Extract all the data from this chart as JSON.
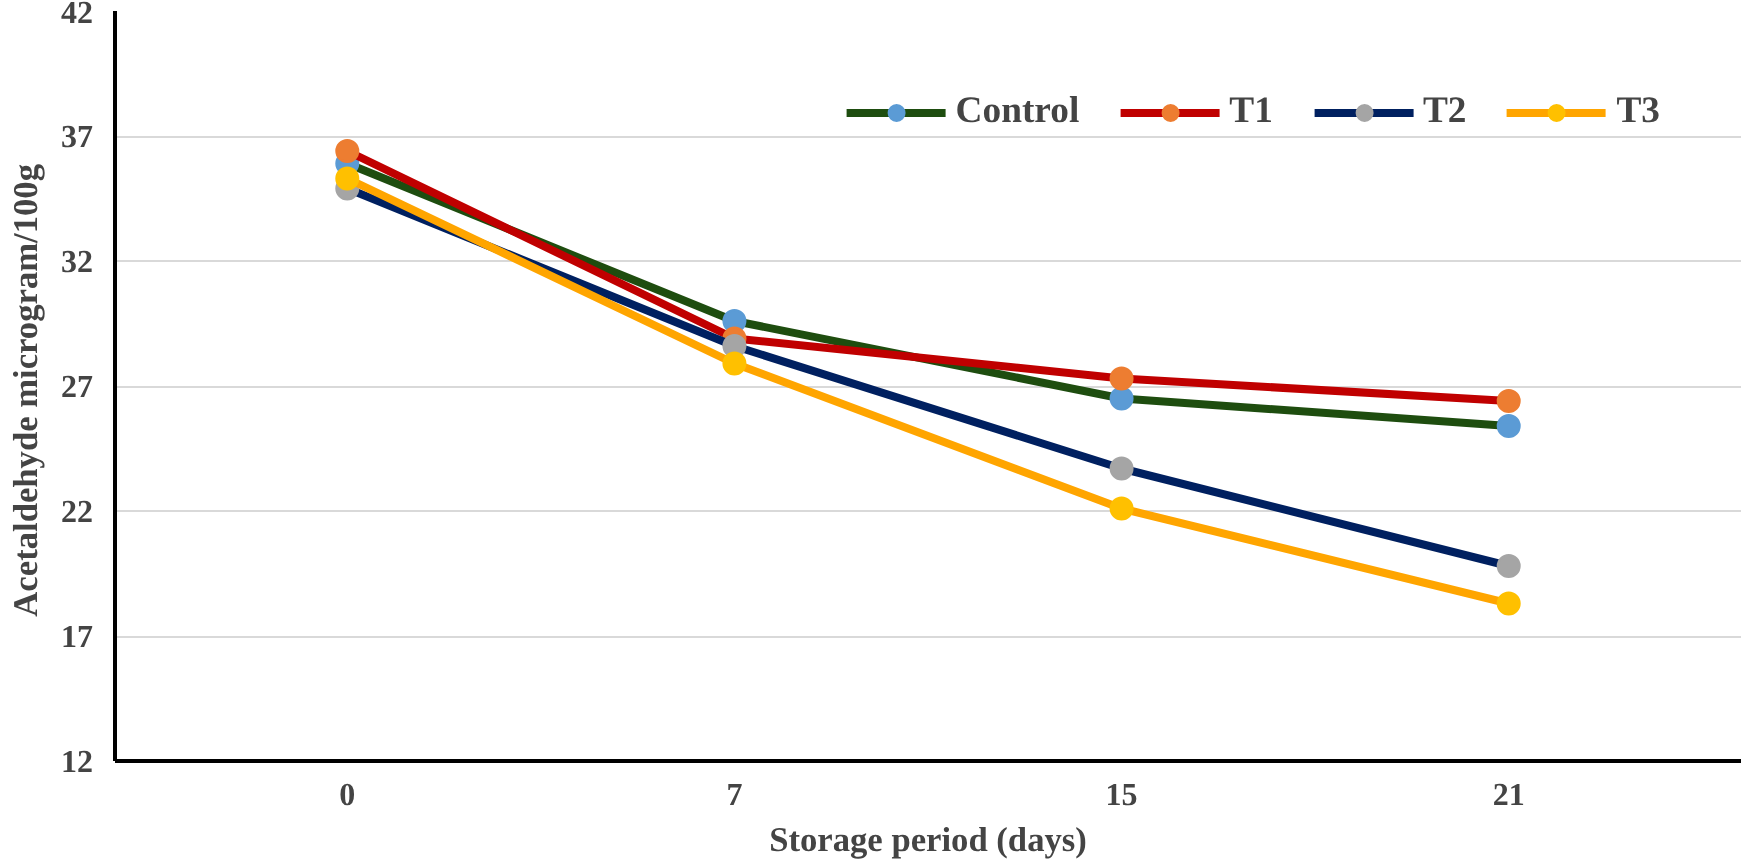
{
  "chart_data": {
    "type": "line",
    "xlabel": "Storage period (days)",
    "ylabel": "Acetaldehyde  microgram/100g",
    "categories": [
      "0",
      "7",
      "15",
      "21"
    ],
    "series": [
      {
        "name": "Control",
        "color": "#1e4d0f",
        "colors": [
          "#5b9bd5",
          "#5b9bd5",
          "#5b9bd5",
          "#5b9bd5"
        ],
        "values": [
          35.9,
          29.6,
          26.5,
          25.4
        ]
      },
      {
        "name": "T1",
        "color": "#c00000",
        "colors": [
          "#ed7d31",
          "#ed7d31",
          "#ed7d31",
          "#ed7d31"
        ],
        "values": [
          36.4,
          28.9,
          27.3,
          26.4
        ]
      },
      {
        "name": "T2",
        "color": "#002060",
        "colors": [
          "#a5a5a5",
          "#a5a5a5",
          "#a5a5a5",
          "#a5a5a5"
        ],
        "values": [
          34.9,
          28.6,
          23.7,
          19.8
        ]
      },
      {
        "name": "T3",
        "color": "#ffa500",
        "colors": [
          "#ffc000",
          "#ffc000",
          "#ffc000",
          "#ffc000"
        ],
        "values": [
          35.3,
          27.9,
          22.1,
          18.3
        ]
      }
    ],
    "ylim": [
      12,
      42
    ],
    "yticks": [
      12,
      17,
      22,
      27,
      32,
      37,
      42
    ],
    "grid": "y",
    "legend": "top right",
    "marker": "circle"
  }
}
